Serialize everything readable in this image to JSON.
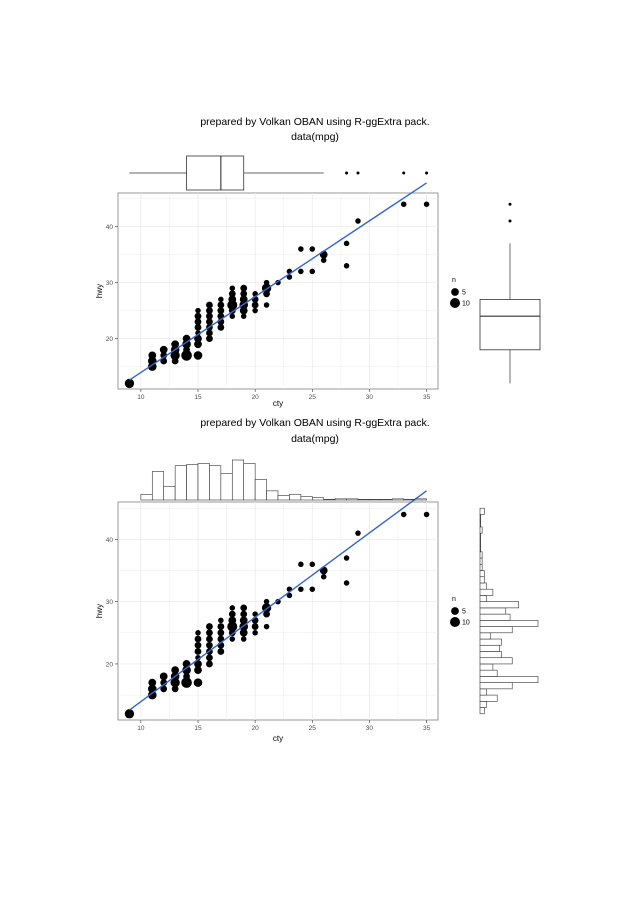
{
  "page": {
    "title_line1": "prepared by Volkan OBAN using R-ggExtra pack.",
    "title_line2": "data(mpg)"
  },
  "chart_data": [
    {
      "type": "scatter",
      "marginal": "boxplot",
      "title": "prepared by Volkan OBAN using R-ggExtra pack.",
      "subtitle": "data(mpg)",
      "xlabel": "cty",
      "ylabel": "hwy",
      "xlim": [
        8,
        36
      ],
      "ylim": [
        11,
        46
      ],
      "xticks": [
        10,
        15,
        20,
        25,
        30,
        35
      ],
      "yticks": [
        20,
        30,
        40
      ],
      "grid": true,
      "legend": {
        "title": "n",
        "entries": [
          5,
          10
        ],
        "placement": "right"
      },
      "trend_line": {
        "color": "#3366cc",
        "points": [
          [
            9,
            12.6
          ],
          [
            35,
            47.8
          ]
        ]
      },
      "marginal_box_x": {
        "whisker_low": 9,
        "q1": 14,
        "median": 17,
        "q3": 19,
        "whisker_high": 26,
        "outliers": [
          28,
          29,
          33,
          35
        ]
      },
      "marginal_box_y": {
        "whisker_low": 12,
        "q1": 18,
        "median": 24,
        "q3": 27,
        "whisker_high": 37,
        "outliers": [
          41,
          44
        ]
      }
    },
    {
      "type": "scatter",
      "marginal": "histogram",
      "title": "prepared by Volkan OBAN using R-ggExtra pack.",
      "subtitle": "data(mpg)",
      "xlabel": "cty",
      "ylabel": "hwy",
      "xlim": [
        8,
        36
      ],
      "ylim": [
        11,
        46
      ],
      "xticks": [
        10,
        15,
        20,
        25,
        30,
        35
      ],
      "yticks": [
        20,
        30,
        40
      ],
      "grid": true,
      "legend": {
        "title": "n",
        "entries": [
          5,
          10
        ],
        "placement": "right"
      },
      "trend_line": {
        "color": "#3366cc",
        "points": [
          [
            9,
            12.6
          ],
          [
            35,
            47.8
          ]
        ]
      },
      "histogram_x": {
        "bin_starts": [
          10,
          11,
          12,
          13,
          14,
          15,
          16,
          17,
          18,
          19,
          20,
          21,
          22,
          23,
          24,
          25,
          26,
          27,
          28,
          29,
          30,
          31,
          32,
          33,
          34
        ],
        "counts": [
          5,
          25,
          12,
          30,
          31,
          32,
          30,
          23,
          35,
          32,
          18,
          8,
          4,
          5,
          3,
          2,
          0,
          1,
          1,
          0,
          0,
          0,
          1,
          0,
          1
        ]
      },
      "histogram_y": {
        "bin_starts": [
          12,
          13,
          14,
          15,
          16,
          17,
          18,
          19,
          20,
          21,
          22,
          23,
          24,
          25,
          26,
          27,
          28,
          29,
          30,
          31,
          32,
          33,
          34,
          35,
          36,
          37,
          38,
          39,
          40,
          41,
          42,
          43,
          44
        ],
        "counts": [
          2,
          3,
          8,
          3,
          15,
          27,
          8,
          6,
          15,
          10,
          9,
          10,
          5,
          15,
          27,
          14,
          12,
          18,
          3,
          6,
          3,
          2,
          2,
          1,
          1,
          1,
          0,
          0,
          0,
          1,
          0,
          0,
          2
        ]
      }
    }
  ],
  "points": [
    [
      9,
      12,
      5
    ],
    [
      11,
      15,
      4
    ],
    [
      11,
      16,
      4
    ],
    [
      11,
      17,
      3
    ],
    [
      12,
      16,
      2
    ],
    [
      12,
      17,
      2
    ],
    [
      12,
      18,
      3
    ],
    [
      13,
      17,
      5
    ],
    [
      13,
      18,
      4
    ],
    [
      13,
      19,
      3
    ],
    [
      14,
      17,
      7
    ],
    [
      14,
      19,
      4
    ],
    [
      14,
      20,
      3
    ],
    [
      15,
      17,
      4
    ],
    [
      15,
      19,
      3
    ],
    [
      15,
      20,
      3
    ],
    [
      15,
      22,
      2
    ],
    [
      15,
      23,
      2
    ],
    [
      15,
      24,
      2
    ],
    [
      15,
      25,
      1
    ],
    [
      16,
      20,
      2
    ],
    [
      16,
      21,
      2
    ],
    [
      16,
      22,
      2
    ],
    [
      16,
      23,
      2
    ],
    [
      16,
      24,
      2
    ],
    [
      16,
      25,
      2
    ],
    [
      16,
      26,
      2
    ],
    [
      17,
      22,
      2
    ],
    [
      17,
      23,
      2
    ],
    [
      17,
      24,
      2
    ],
    [
      17,
      25,
      2
    ],
    [
      17,
      26,
      2
    ],
    [
      18,
      25,
      2
    ],
    [
      18,
      26,
      6
    ],
    [
      18,
      27,
      3
    ],
    [
      18,
      28,
      2
    ],
    [
      18,
      29,
      1
    ],
    [
      19,
      25,
      3
    ],
    [
      19,
      26,
      4
    ],
    [
      19,
      27,
      3
    ],
    [
      19,
      28,
      2
    ],
    [
      19,
      29,
      2
    ],
    [
      20,
      26,
      2
    ],
    [
      20,
      27,
      2
    ],
    [
      20,
      28,
      1
    ],
    [
      21,
      26,
      1
    ],
    [
      21,
      28,
      2
    ],
    [
      21,
      29,
      5
    ],
    [
      21,
      30,
      1
    ],
    [
      22,
      30,
      1
    ],
    [
      23,
      31,
      1
    ],
    [
      23,
      32,
      1
    ],
    [
      24,
      32,
      1
    ],
    [
      24,
      36,
      1
    ],
    [
      25,
      32,
      1
    ],
    [
      25,
      36,
      1
    ],
    [
      26,
      34,
      1
    ],
    [
      26,
      35,
      3
    ],
    [
      28,
      33,
      1
    ],
    [
      28,
      37,
      1
    ],
    [
      29,
      41,
      1
    ],
    [
      33,
      44,
      1
    ],
    [
      35,
      44,
      1
    ],
    [
      14,
      18,
      2
    ],
    [
      13,
      16,
      2
    ],
    [
      15,
      21,
      1
    ],
    [
      17,
      27,
      1
    ],
    [
      18,
      24,
      1
    ],
    [
      19,
      24,
      1
    ],
    [
      20,
      25,
      1
    ]
  ]
}
